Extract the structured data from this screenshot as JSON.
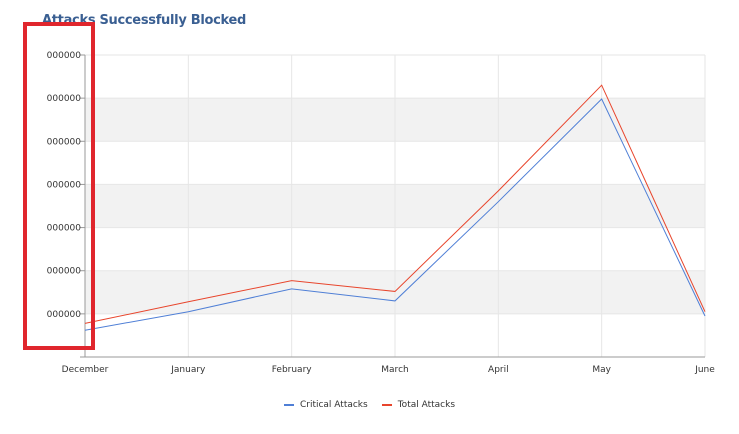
{
  "chart_data": {
    "type": "line",
    "title": "Attacks Successfully Blocked",
    "categories": [
      "December",
      "January",
      "February",
      "March",
      "April",
      "May",
      "June"
    ],
    "yticks": [
      "",
      "000000",
      "000000",
      "000000",
      "000000",
      "000000",
      "000000",
      "000000"
    ],
    "ylim": [
      0,
      7
    ],
    "series": [
      {
        "name": "Critical Attacks",
        "color": "#4f7fd6",
        "values": [
          0.62,
          1.05,
          1.58,
          1.3,
          3.6,
          5.98,
          0.95
        ]
      },
      {
        "name": "Total Attacks",
        "color": "#e8452c",
        "values": [
          0.78,
          1.28,
          1.77,
          1.52,
          3.85,
          6.3,
          1.05
        ]
      }
    ],
    "legend_position": "bottom-center",
    "grid": true,
    "alternating_bands": true
  },
  "colors": {
    "title": "#3a5f92",
    "band": "#f2f2f2",
    "grid": "#e6e6e6",
    "highlight": "#e0262d"
  }
}
